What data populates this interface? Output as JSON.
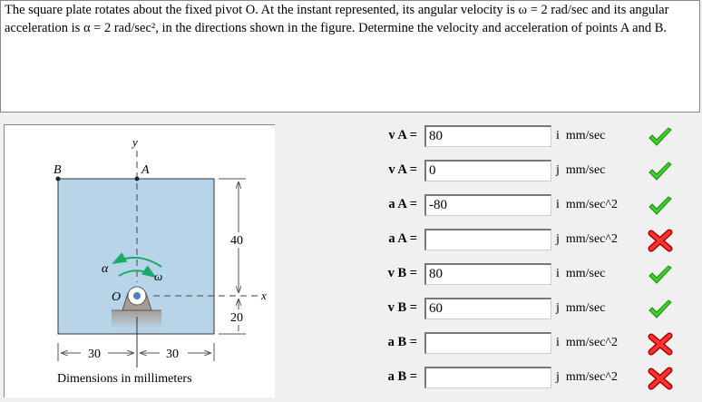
{
  "question": {
    "line1": "The square plate rotates about the fixed pivot O. At the instant represented, its angular velocity is ω = 2 rad/sec and its angular",
    "line2": "acceleration is α = 2 rad/sec², in the directions shown in the figure. Determine the velocity and acceleration of points A and B."
  },
  "figure": {
    "y": "y",
    "x": "x",
    "A": "A",
    "B": "B",
    "O": "O",
    "alpha": "α",
    "omega": "ω",
    "dim40": "40",
    "dim20": "20",
    "dim30a": "30",
    "dim30b": "30",
    "caption": "Dimensions in millimeters",
    "plate_color": "#b7d4e8",
    "arrow_color": "#1aaa6a"
  },
  "rows": [
    {
      "label": "v A =",
      "value": "80",
      "unit": "i  mm/sec",
      "status": "correct"
    },
    {
      "label": "v A =",
      "value": "0",
      "unit": "j  mm/sec",
      "status": "correct"
    },
    {
      "label": "a A =",
      "value": "-80",
      "unit": "i  mm/sec^2",
      "status": "correct"
    },
    {
      "label": "a A =",
      "value": "",
      "unit": "j  mm/sec^2",
      "status": "incorrect"
    },
    {
      "label": "v B =",
      "value": "80",
      "unit": "i  mm/sec",
      "status": "correct"
    },
    {
      "label": "v B =",
      "value": "60",
      "unit": "j  mm/sec",
      "status": "correct"
    },
    {
      "label": "a B =",
      "value": "",
      "unit": "i  mm/sec^2",
      "status": "incorrect"
    },
    {
      "label": "a B =",
      "value": "",
      "unit": "j  mm/sec^2",
      "status": "incorrect"
    }
  ]
}
